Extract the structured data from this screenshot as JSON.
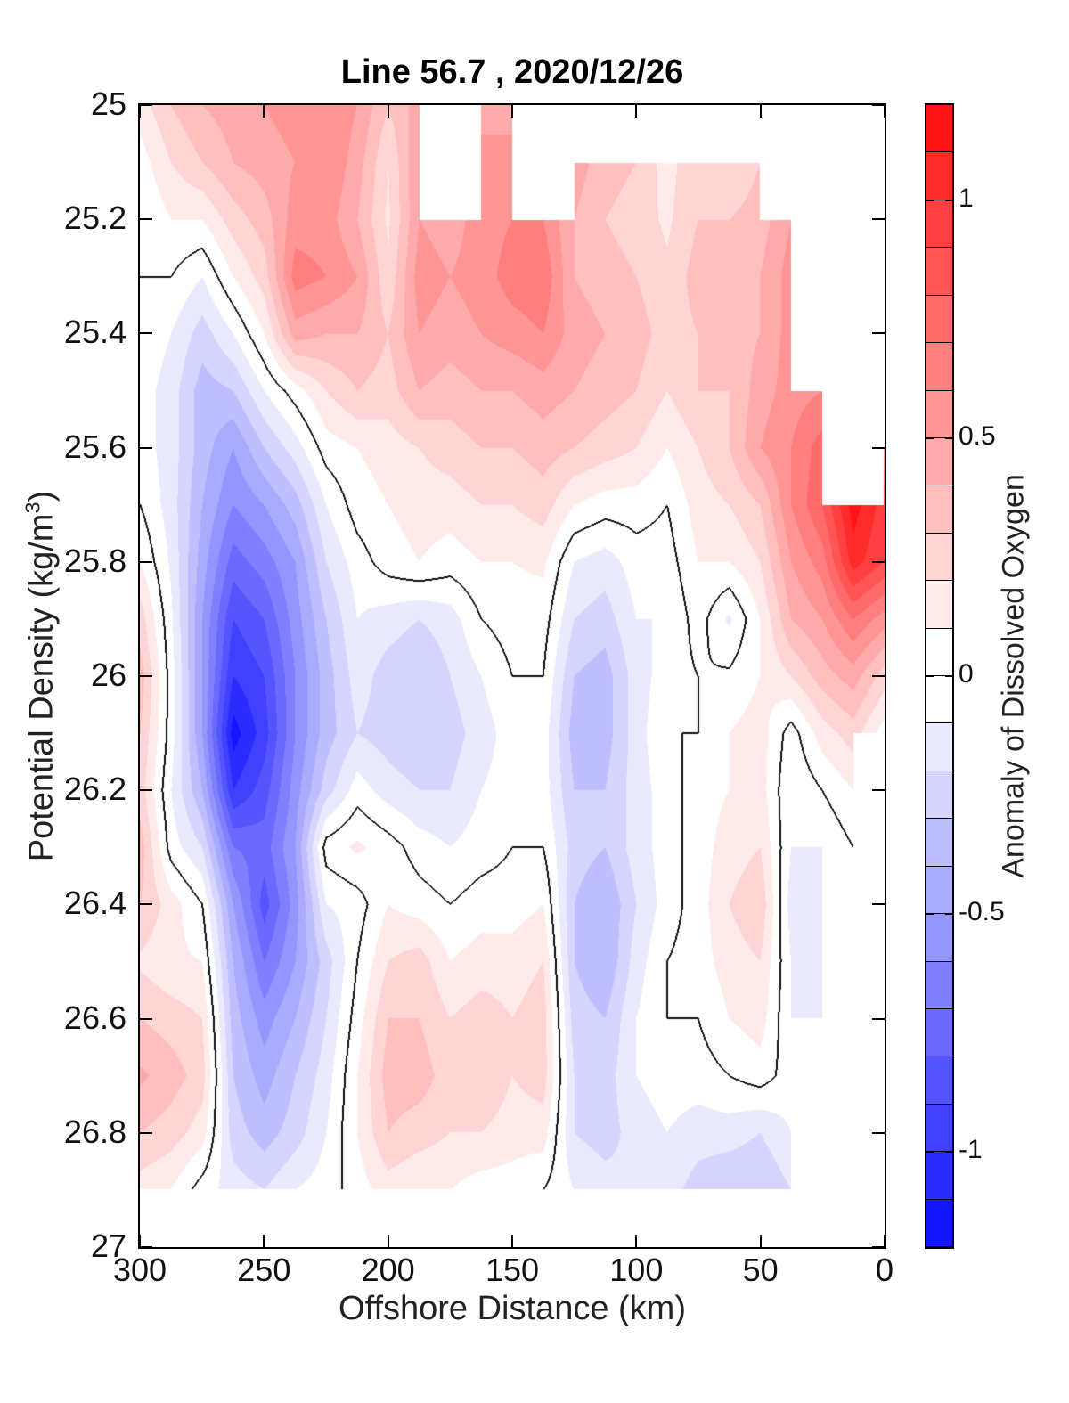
{
  "title": "Line 56.7 , 2020/12/26",
  "axes": {
    "xlabel": "Offshore Distance (km)",
    "ylabel_prefix": "Potential Density (kg/m",
    "ylabel_sup": "3",
    "ylabel_suffix": ")",
    "x_range": [
      300,
      0
    ],
    "y_range": [
      25,
      27
    ],
    "x_ticks": [
      {
        "label": "300",
        "value": 300
      },
      {
        "label": "250",
        "value": 250
      },
      {
        "label": "200",
        "value": 200
      },
      {
        "label": "150",
        "value": 150
      },
      {
        "label": "100",
        "value": 100
      },
      {
        "label": "50",
        "value": 50
      },
      {
        "label": "0",
        "value": 0
      }
    ],
    "y_ticks": [
      {
        "label": "25",
        "value": 25
      },
      {
        "label": "25.2",
        "value": 25.2
      },
      {
        "label": "25.4",
        "value": 25.4
      },
      {
        "label": "25.6",
        "value": 25.6
      },
      {
        "label": "25.8",
        "value": 25.8
      },
      {
        "label": "26",
        "value": 26
      },
      {
        "label": "26.2",
        "value": 26.2
      },
      {
        "label": "26.4",
        "value": 26.4
      },
      {
        "label": "26.6",
        "value": 26.6
      },
      {
        "label": "26.8",
        "value": 26.8
      },
      {
        "label": "27",
        "value": 27
      }
    ]
  },
  "colorbar": {
    "label": "Anomaly of Dissolved Oxygen",
    "min": -1.2,
    "max": 1.2,
    "step": 0.1,
    "n_segments": 24,
    "tick_labels": [
      {
        "label": "1",
        "value": 1
      },
      {
        "label": "0.5",
        "value": 0.5
      },
      {
        "label": "0",
        "value": 0
      },
      {
        "label": "-0.5",
        "value": -0.5
      },
      {
        "label": "-1",
        "value": -1
      }
    ],
    "colormap": {
      "type": "blue-white-red-linear",
      "min_color": "#0000ff",
      "mid_color": "#ffffff",
      "max_color": "#ff0000"
    }
  },
  "chart_data": {
    "type": "filled_contour",
    "title": "Line 56.7 , 2020/12/26",
    "xlabel": "Offshore Distance (km)",
    "ylabel": "Potential Density (kg/m3)",
    "zlabel": "Anomaly of Dissolved Oxygen",
    "contour_interval": 0.1,
    "zero_contour_line": true,
    "x_axis_reversed": true,
    "x_km": [
      300,
      287.5,
      275,
      262.5,
      250,
      237.5,
      225,
      212.5,
      200,
      187.5,
      175,
      162.5,
      150,
      137.5,
      125,
      112.5,
      100,
      87.5,
      75,
      62.5,
      50,
      37.5,
      25,
      12.5,
      0
    ],
    "sigma": [
      25.0,
      25.1,
      25.2,
      25.3,
      25.4,
      25.5,
      25.6,
      25.7,
      25.8,
      25.9,
      26.0,
      26.1,
      26.2,
      26.3,
      26.4,
      26.5,
      26.6,
      26.7,
      26.8,
      26.9
    ],
    "values": [
      [
        0.15,
        0.3,
        0.4,
        0.45,
        0.5,
        0.55,
        0.6,
        0.5,
        0.3,
        0.45,
        null,
        0.45,
        0.45,
        null,
        null,
        null,
        null,
        0.1,
        null,
        0.12,
        null,
        null,
        null,
        null,
        null
      ],
      [
        0.05,
        0.2,
        0.3,
        0.4,
        0.45,
        0.5,
        0.6,
        0.45,
        0.2,
        0.5,
        null,
        0.55,
        0.55,
        null,
        0.45,
        0.35,
        0.3,
        0.15,
        0.3,
        0.2,
        0.3,
        null,
        null,
        null,
        null
      ],
      [
        0,
        0.1,
        0.1,
        0.25,
        0.35,
        0.55,
        0.55,
        0.4,
        0.18,
        0.5,
        0.45,
        0.55,
        0.6,
        0.6,
        0.4,
        0.3,
        0.25,
        0.18,
        0.3,
        0.3,
        0.35,
        0.5,
        null,
        null,
        null
      ],
      [
        0,
        0,
        -0.1,
        0.1,
        0.25,
        0.65,
        0.6,
        0.5,
        0.22,
        0.55,
        0.5,
        0.55,
        0.65,
        0.68,
        0.4,
        0.35,
        0.3,
        0.22,
        0.35,
        0.35,
        0.4,
        0.55,
        null,
        null,
        null
      ],
      [
        -0.02,
        -0.1,
        -0.25,
        -0.1,
        0.1,
        0.45,
        0.4,
        0.4,
        0.3,
        0.5,
        0.45,
        0.5,
        0.55,
        0.6,
        0.45,
        0.4,
        0.35,
        0.25,
        0.3,
        0.35,
        0.4,
        0.55,
        null,
        null,
        null
      ],
      [
        -0.05,
        -0.15,
        -0.35,
        -0.3,
        -0.1,
        0.05,
        0.2,
        0.3,
        0.25,
        0.4,
        0.35,
        0.4,
        0.4,
        0.45,
        0.4,
        0.35,
        0.3,
        0.2,
        0.3,
        0.3,
        0.45,
        0.55,
        0.6,
        null,
        null
      ],
      [
        -0.05,
        -0.15,
        -0.35,
        -0.5,
        -0.3,
        -0.15,
        0.05,
        0.1,
        0.15,
        0.2,
        0.25,
        0.3,
        0.3,
        0.35,
        0.3,
        0.25,
        0.2,
        0.1,
        0.2,
        0.3,
        0.5,
        0.6,
        0.75,
        null,
        0.55
      ],
      [
        0,
        -0.15,
        -0.4,
        -0.6,
        -0.5,
        -0.35,
        -0.1,
        0.05,
        0.1,
        0.15,
        0.15,
        0.2,
        0.2,
        0.25,
        0.1,
        0.05,
        0.05,
        0,
        0.15,
        0.2,
        0.3,
        0.6,
        0.8,
        1.15,
        0.95
      ],
      [
        0.1,
        -0.12,
        -0.45,
        -0.75,
        -0.65,
        -0.5,
        -0.2,
        -0.05,
        0.05,
        0.1,
        0.05,
        0.1,
        0.1,
        0.12,
        -0.1,
        -0.15,
        -0.05,
        -0.05,
        0.1,
        0.1,
        0.2,
        0.5,
        0.65,
        1.05,
        0.9
      ],
      [
        0.25,
        -0.08,
        -0.5,
        -0.9,
        -0.8,
        -0.55,
        -0.3,
        -0.1,
        -0.15,
        -0.2,
        -0.15,
        0,
        0.05,
        0.05,
        -0.2,
        -0.25,
        -0.1,
        -0.1,
        0.05,
        -0.12,
        0.1,
        0.4,
        0.5,
        0.7,
        0.55
      ],
      [
        0.35,
        -0.05,
        -0.5,
        -1.0,
        -0.9,
        -0.6,
        -0.35,
        -0.15,
        -0.25,
        -0.3,
        -0.2,
        -0.1,
        0,
        0,
        -0.3,
        -0.35,
        -0.15,
        -0.05,
        0,
        0.02,
        0.1,
        0.2,
        0.35,
        0.45,
        0.25
      ],
      [
        0.3,
        -0.05,
        -0.5,
        -1.15,
        -0.95,
        -0.6,
        -0.35,
        -0.2,
        -0.25,
        -0.3,
        -0.25,
        -0.15,
        -0.05,
        -0.05,
        -0.35,
        -0.35,
        -0.15,
        0,
        0,
        0.1,
        0.15,
        -0.05,
        0.15,
        0.25,
        0.05
      ],
      [
        0.25,
        -0.1,
        -0.4,
        -1.0,
        -0.85,
        -0.55,
        -0.25,
        -0.05,
        -0.15,
        -0.2,
        -0.2,
        -0.1,
        -0.05,
        -0.05,
        -0.3,
        -0.3,
        -0.15,
        -0.05,
        0.05,
        0.1,
        0.15,
        -0.1,
        0,
        0.1,
        null
      ],
      [
        0.35,
        -0.05,
        -0.2,
        -0.7,
        -0.75,
        -0.5,
        0.05,
        0.12,
        0.05,
        -0.05,
        -0.1,
        -0.05,
        0,
        0,
        -0.25,
        -0.3,
        -0.15,
        -0.05,
        0.05,
        0.15,
        0.2,
        -0.1,
        -0.1,
        0,
        null
      ],
      [
        0.3,
        0.15,
        0,
        -0.5,
        -0.85,
        -0.55,
        -0.1,
        -0.05,
        0.1,
        0.05,
        0,
        0.05,
        0.05,
        0.1,
        -0.3,
        -0.4,
        -0.2,
        -0.05,
        0.05,
        0.2,
        0.28,
        -0.15,
        -0.15,
        null,
        null
      ],
      [
        0.18,
        0.12,
        0.1,
        -0.4,
        -0.7,
        -0.5,
        -0.25,
        0,
        0.2,
        0.25,
        0.1,
        0.15,
        0.15,
        0.2,
        -0.3,
        -0.4,
        -0.15,
        0,
        0.05,
        0.15,
        0.2,
        -0.1,
        -0.15,
        null,
        null
      ],
      [
        0.3,
        0.25,
        0.2,
        -0.35,
        -0.55,
        -0.4,
        -0.2,
        0.05,
        0.3,
        0.3,
        0.2,
        0.25,
        0.2,
        0.25,
        -0.25,
        -0.3,
        -0.1,
        0,
        0,
        0.1,
        0.15,
        -0.1,
        -0.1,
        null,
        null
      ],
      [
        0.42,
        0.35,
        0.25,
        -0.3,
        -0.45,
        -0.3,
        -0.15,
        0.1,
        0.35,
        0.35,
        0.25,
        0.3,
        0.2,
        0.25,
        -0.2,
        -0.25,
        -0.1,
        -0.05,
        -0.05,
        0,
        0.05,
        -0.05,
        -0.05,
        null,
        null
      ],
      [
        0.3,
        0.25,
        0.15,
        -0.25,
        -0.35,
        -0.25,
        -0.1,
        0.1,
        0.3,
        0.25,
        0.2,
        0.2,
        0.15,
        0.15,
        -0.2,
        -0.25,
        -0.15,
        -0.1,
        -0.15,
        -0.15,
        -0.2,
        -0.1,
        null,
        null,
        null
      ],
      [
        0.15,
        0.1,
        -0.05,
        -0.15,
        -0.2,
        -0.1,
        -0.05,
        0.05,
        0.15,
        0.1,
        0.1,
        0.05,
        0.05,
        0,
        -0.1,
        -0.15,
        -0.2,
        -0.15,
        -0.25,
        -0.3,
        -0.3,
        -0.2,
        null,
        null,
        null
      ]
    ]
  }
}
